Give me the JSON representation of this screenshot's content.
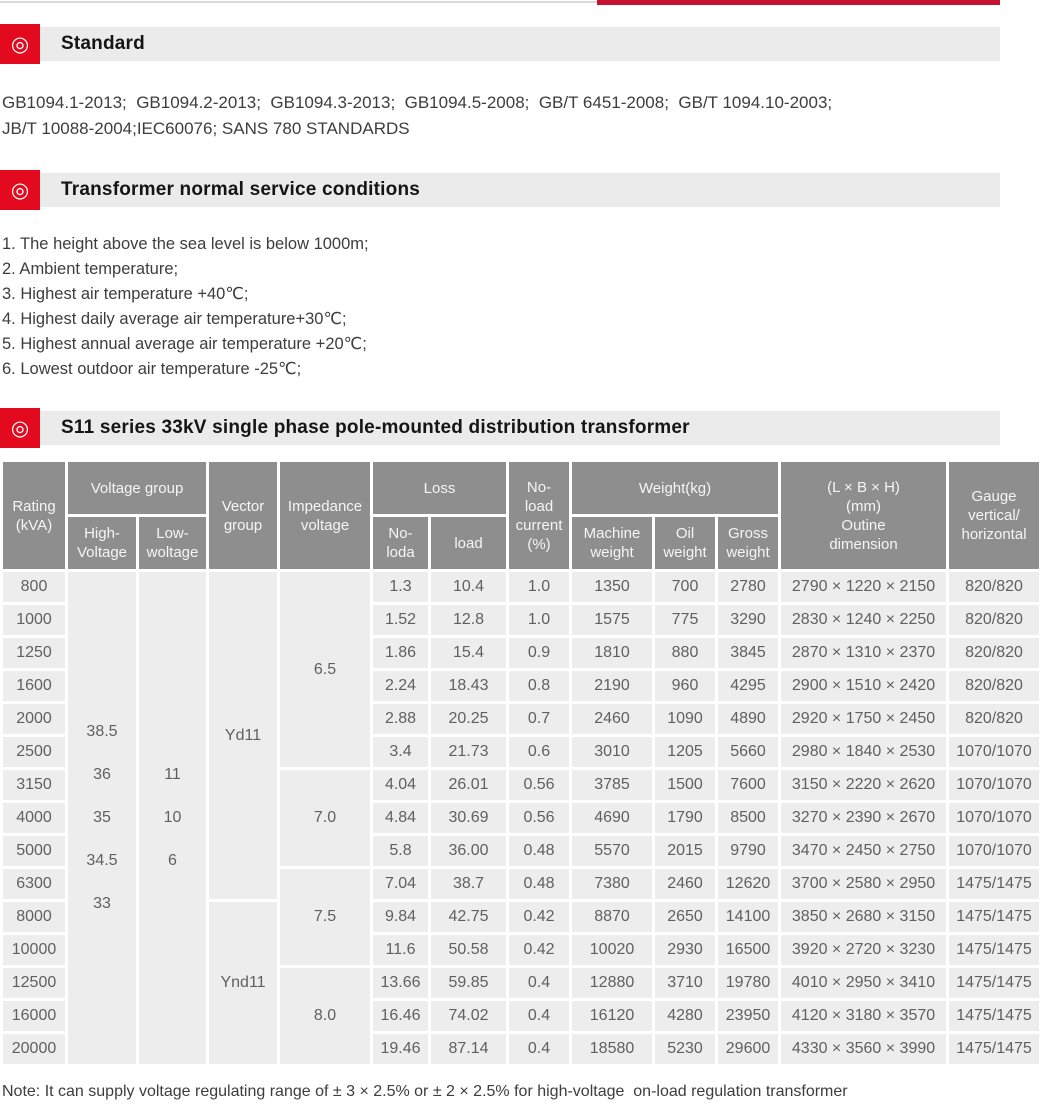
{
  "colors": {
    "top_bar_red": "#c41230",
    "top_bar_gray": "#d9d9d9",
    "icon_red": "#e3091e",
    "heading_bar_bg": "#ebebeb",
    "table_header_bg": "#8e8e8e",
    "table_cell_bg": "#ededed"
  },
  "icons": {
    "section_bullet_glyph": "◎"
  },
  "section_standard": {
    "title": "Standard",
    "body_line1": "GB1094.1-2013;  GB1094.2-2013;  GB1094.3-2013;  GB1094.5-2008;  GB/T 6451-2008;  GB/T 1094.10-2003;",
    "body_line2": "JB/T 10088-2004;IEC60076; SANS 780 STANDARDS"
  },
  "section_conditions": {
    "title": "Transformer normal service conditions",
    "items": [
      "1. The height above the sea level is below 1000m;",
      "2. Ambient temperature;",
      "3. Highest air temperature +40℃;",
      "4. Highest daily average air temperature+30℃;",
      "5. Highest annual average air temperature +20℃;",
      "6. Lowest outdoor air temperature -25℃;"
    ]
  },
  "section_table": {
    "title": "S11 series 33kV single phase pole-mounted distribution transformer",
    "table": {
      "header": {
        "rating": "Rating\n(kVA)",
        "voltage_group": "Voltage group",
        "high_voltage": "High-\nVoltage",
        "low_voltage": "Low-\nwoltage",
        "vector_group": "Vector\ngroup",
        "impedance_voltage": "Impedance\nvoltage",
        "loss": "Loss",
        "no_load_loss": "No-\nloda",
        "load_loss": "load",
        "no_load_current": "No-\nload\ncurrent\n(%)",
        "weight": "Weight(kg)",
        "machine_weight": "Machine\nweight",
        "oil_weight": "Oil\nweight",
        "gross_weight": "Gross\nweight",
        "dimension": "(L × B × H)\n(mm)\nOutine\ndimension",
        "gauge": "Gauge\nvertical/\nhorizontal"
      },
      "high_voltage_values": [
        "38.5",
        "36",
        "35",
        "34.5",
        "33"
      ],
      "low_voltage_values": [
        "11",
        "10",
        "6"
      ],
      "vector_groups": [
        {
          "label": "Yd11",
          "span": 10
        },
        {
          "label": "Ynd11",
          "span": 5
        }
      ],
      "impedance_groups": [
        {
          "label": "6.5",
          "span": 6
        },
        {
          "label": "7.0",
          "span": 3
        },
        {
          "label": "7.5",
          "span": 3
        },
        {
          "label": "8.0",
          "span": 3
        }
      ],
      "column_order": [
        "rating",
        "no_load_loss",
        "load_loss",
        "no_load_current",
        "machine_weight",
        "oil_weight",
        "gross_weight",
        "dimensions",
        "gauge"
      ],
      "rows": [
        [
          "800",
          "1.3",
          "10.4",
          "1.0",
          "1350",
          "700",
          "2780",
          "2790 × 1220 × 2150",
          "820/820"
        ],
        [
          "1000",
          "1.52",
          "12.8",
          "1.0",
          "1575",
          "775",
          "3290",
          "2830 × 1240 × 2250",
          "820/820"
        ],
        [
          "1250",
          "1.86",
          "15.4",
          "0.9",
          "1810",
          "880",
          "3845",
          "2870 × 1310 × 2370",
          "820/820"
        ],
        [
          "1600",
          "2.24",
          "18.43",
          "0.8",
          "2190",
          "960",
          "4295",
          "2900 × 1510 × 2420",
          "820/820"
        ],
        [
          "2000",
          "2.88",
          "20.25",
          "0.7",
          "2460",
          "1090",
          "4890",
          "2920 × 1750 × 2450",
          "820/820"
        ],
        [
          "2500",
          "3.4",
          "21.73",
          "0.6",
          "3010",
          "1205",
          "5660",
          "2980 × 1840 × 2530",
          "1070/1070"
        ],
        [
          "3150",
          "4.04",
          "26.01",
          "0.56",
          "3785",
          "1500",
          "7600",
          "3150 × 2220 × 2620",
          "1070/1070"
        ],
        [
          "4000",
          "4.84",
          "30.69",
          "0.56",
          "4690",
          "1790",
          "8500",
          "3270 × 2390 × 2670",
          "1070/1070"
        ],
        [
          "5000",
          "5.8",
          "36.00",
          "0.48",
          "5570",
          "2015",
          "9790",
          "3470 × 2450 × 2750",
          "1070/1070"
        ],
        [
          "6300",
          "7.04",
          "38.7",
          "0.48",
          "7380",
          "2460",
          "12620",
          "3700 × 2580 × 2950",
          "1475/1475"
        ],
        [
          "8000",
          "9.84",
          "42.75",
          "0.42",
          "8870",
          "2650",
          "14100",
          "3850 × 2680 × 3150",
          "1475/1475"
        ],
        [
          "10000",
          "11.6",
          "50.58",
          "0.42",
          "10020",
          "2930",
          "16500",
          "3920 × 2720 × 3230",
          "1475/1475"
        ],
        [
          "12500",
          "13.66",
          "59.85",
          "0.4",
          "12880",
          "3710",
          "19780",
          "4010 × 2950 × 3410",
          "1475/1475"
        ],
        [
          "16000",
          "16.46",
          "74.02",
          "0.4",
          "16120",
          "4280",
          "23950",
          "4120 × 3180 × 3570",
          "1475/1475"
        ],
        [
          "20000",
          "19.46",
          "87.14",
          "0.4",
          "18580",
          "5230",
          "29600",
          "4330 × 3560 × 3990",
          "1475/1475"
        ]
      ]
    }
  },
  "note": "Note: It can supply voltage regulating range of ± 3 × 2.5% or ± 2 × 2.5% for high-voltage  on-load regulation transformer"
}
